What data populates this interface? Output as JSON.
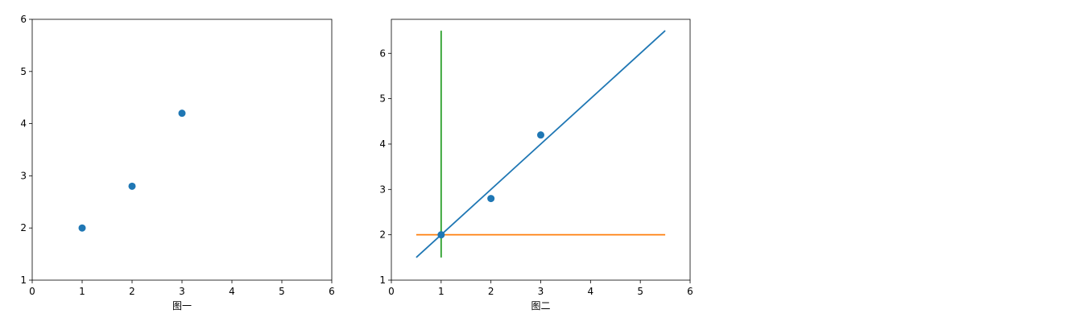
{
  "chart_data": [
    {
      "type": "scatter",
      "xlabel": "图一",
      "ylabel": "",
      "xlim": [
        0,
        6
      ],
      "ylim": [
        1,
        6
      ],
      "xticks": [
        0,
        1,
        2,
        3,
        4,
        5,
        6
      ],
      "yticks": [
        1,
        2,
        3,
        4,
        5,
        6
      ],
      "grid": false,
      "series": [
        {
          "kind": "scatter",
          "color": "#1f77b4",
          "x": [
            1,
            2,
            3
          ],
          "y": [
            2,
            2.8,
            4.2
          ]
        }
      ]
    },
    {
      "type": "scatter",
      "xlabel": "图二",
      "ylabel": "",
      "xlim": [
        0,
        6
      ],
      "ylim": [
        1,
        6.75
      ],
      "xticks": [
        0,
        1,
        2,
        3,
        4,
        5,
        6
      ],
      "yticks": [
        1,
        2,
        3,
        4,
        5,
        6
      ],
      "grid": false,
      "series": [
        {
          "kind": "line",
          "color": "#1f77b4",
          "x": [
            0.5,
            5.5
          ],
          "y": [
            1.5,
            6.5
          ]
        },
        {
          "kind": "line",
          "color": "#ff7f0e",
          "x": [
            0.5,
            5.5
          ],
          "y": [
            2,
            2
          ]
        },
        {
          "kind": "line",
          "color": "#2ca02c",
          "x": [
            1,
            1
          ],
          "y": [
            1.5,
            6.5
          ]
        },
        {
          "kind": "scatter",
          "color": "#1f77b4",
          "x": [
            1,
            2,
            3
          ],
          "y": [
            2,
            2.8,
            4.2
          ]
        }
      ]
    }
  ]
}
